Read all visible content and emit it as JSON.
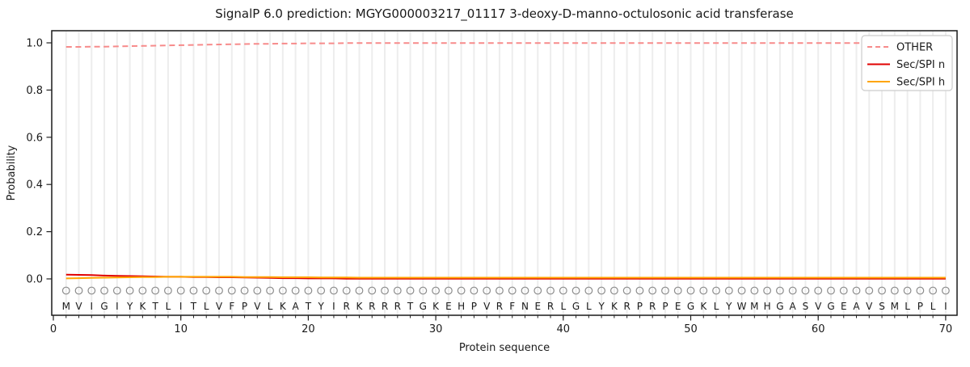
{
  "chart_data": {
    "type": "line",
    "title": "SignalP 6.0 prediction: MGYG000003217_01117 3-deoxy-D-manno-octulosonic acid transferase",
    "xlabel": "Protein sequence",
    "ylabel": "Probability",
    "xticks": [
      0,
      10,
      20,
      30,
      40,
      50,
      60,
      70
    ],
    "yticks": [
      "0.0",
      "0.2",
      "0.4",
      "0.6",
      "0.8",
      "1.0"
    ],
    "ylim": [
      -0.15,
      1.05
    ],
    "xlim": [
      0,
      70.8
    ],
    "grid": "vertical gridline at every residue position",
    "legend_position": "upper right",
    "marker": "open gray circle at every residue position",
    "sequence": "MVIGIYKTLITLVFPVLKATYIRKRRRTGKEHPVRFNERLGLYKRPRPEGKLYWMHGASVGEAVSMLPLI",
    "series": [
      {
        "name": "OTHER",
        "color": "#f78b8b",
        "style": "dashed",
        "values": [
          0.983,
          0.983,
          0.984,
          0.984,
          0.985,
          0.986,
          0.987,
          0.988,
          0.989,
          0.99,
          0.991,
          0.992,
          0.993,
          0.994,
          0.995,
          0.996,
          0.996,
          0.997,
          0.997,
          0.998,
          0.998,
          0.998,
          0.999,
          0.999,
          0.999,
          0.999,
          0.999,
          0.999,
          0.999,
          0.999,
          0.999,
          0.999,
          0.999,
          0.999,
          0.999,
          0.999,
          0.999,
          0.999,
          0.999,
          0.999,
          0.999,
          0.999,
          0.999,
          0.999,
          0.999,
          0.999,
          0.999,
          0.999,
          0.999,
          0.999,
          0.999,
          0.999,
          0.999,
          0.999,
          0.999,
          0.999,
          0.999,
          0.999,
          0.999,
          0.999,
          0.999,
          0.999,
          0.999,
          0.999,
          0.999,
          0.999,
          0.999,
          0.999,
          0.999,
          0.999
        ]
      },
      {
        "name": "Sec/SPI n",
        "color": "#e00000",
        "style": "solid",
        "values": [
          0.018,
          0.017,
          0.016,
          0.014,
          0.013,
          0.012,
          0.011,
          0.01,
          0.009,
          0.009,
          0.008,
          0.008,
          0.007,
          0.007,
          0.006,
          0.005,
          0.004,
          0.003,
          0.003,
          0.002,
          0.002,
          0.002,
          0.001,
          0.001,
          0.001,
          0.001,
          0.001,
          0.001,
          0.001,
          0.001,
          0.001,
          0.001,
          0.001,
          0.001,
          0.001,
          0.001,
          0.001,
          0.001,
          0.001,
          0.001,
          0.001,
          0.001,
          0.001,
          0.001,
          0.001,
          0.001,
          0.001,
          0.001,
          0.001,
          0.001,
          0.001,
          0.001,
          0.001,
          0.001,
          0.001,
          0.001,
          0.001,
          0.001,
          0.001,
          0.001,
          0.001,
          0.001,
          0.001,
          0.001,
          0.001,
          0.001,
          0.001,
          0.001,
          0.001,
          0.001
        ]
      },
      {
        "name": "Sec/SPI h",
        "color": "#ffa500",
        "style": "solid",
        "values": [
          0.002,
          0.003,
          0.004,
          0.005,
          0.006,
          0.007,
          0.008,
          0.008,
          0.009,
          0.009,
          0.009,
          0.009,
          0.009,
          0.009,
          0.008,
          0.008,
          0.008,
          0.007,
          0.007,
          0.007,
          0.006,
          0.006,
          0.006,
          0.005,
          0.005,
          0.005,
          0.005,
          0.005,
          0.005,
          0.005,
          0.005,
          0.005,
          0.005,
          0.005,
          0.005,
          0.005,
          0.005,
          0.005,
          0.005,
          0.005,
          0.005,
          0.005,
          0.005,
          0.005,
          0.005,
          0.005,
          0.005,
          0.005,
          0.005,
          0.005,
          0.005,
          0.005,
          0.005,
          0.005,
          0.005,
          0.005,
          0.005,
          0.005,
          0.005,
          0.005,
          0.005,
          0.005,
          0.005,
          0.005,
          0.005,
          0.005,
          0.005,
          0.005,
          0.005,
          0.005
        ]
      }
    ]
  }
}
